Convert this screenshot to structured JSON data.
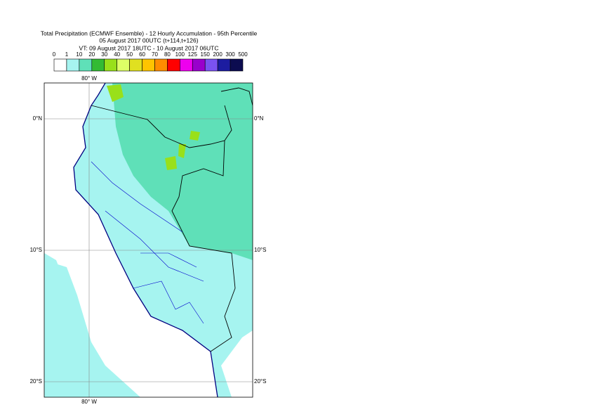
{
  "header": {
    "lines": [
      "Total Precipitation (ECMWF Ensemble) - 12 Hourly Accumulation - 95th Percentile",
      "05 August 2017 00UTC (t+114,t+126)",
      "VT: 09 August 2017 18UTC - 10 August 2017 06UTC"
    ]
  },
  "legend": {
    "labels": [
      "0",
      "1",
      "10",
      "20",
      "30",
      "40",
      "50",
      "60",
      "70",
      "80",
      "100",
      "125",
      "150",
      "200",
      "300",
      "500"
    ],
    "colors": [
      "#ffffff",
      "#a6f4f0",
      "#5fe0b8",
      "#33bb33",
      "#99e01a",
      "#ddff66",
      "#e0e020",
      "#ffc400",
      "#ff8c00",
      "#ff0000",
      "#ee00ee",
      "#9900cc",
      "#7a52f0",
      "#1c1ca0",
      "#0c0c50"
    ]
  },
  "map": {
    "lon_top": "80° W",
    "lon_bottom": "80° W",
    "lat_labels": [
      "0°N",
      "10°S",
      "20°S"
    ]
  }
}
